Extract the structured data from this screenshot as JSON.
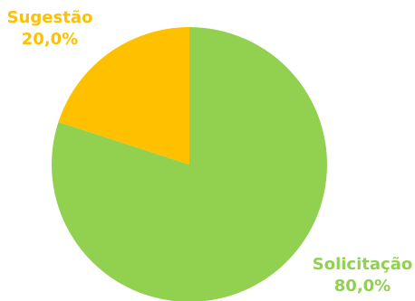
{
  "chart_data": {
    "type": "pie",
    "title": "",
    "slices": [
      {
        "label": "Solicitação",
        "value": 80.0,
        "value_label": "80,0%",
        "color": "#92D050"
      },
      {
        "label": "Sugestão",
        "value": 20.0,
        "value_label": "20,0%",
        "color": "#FFC000"
      }
    ],
    "start": "12 o'clock",
    "direction": "clockwise",
    "legend": "none",
    "label_placement": "outside, colored like slice"
  }
}
